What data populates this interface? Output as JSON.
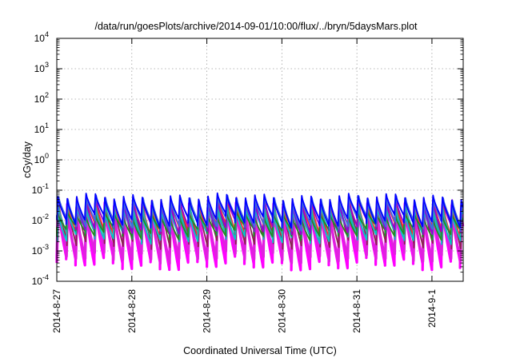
{
  "chart_data": {
    "type": "line",
    "title": "/data/run/goesPlots/archive/2014-09-01/10:00/flux/../bryn/5daysMars.plot",
    "xlabel": "Coordinated Universal Time (UTC)",
    "ylabel": "cGy/day",
    "yscale": "log",
    "ylim": [
      0.0001,
      10000
    ],
    "y_ticks": [
      {
        "value": 0.0001,
        "base": "10",
        "exp": "-4"
      },
      {
        "value": 0.001,
        "base": "10",
        "exp": "-3"
      },
      {
        "value": 0.01,
        "base": "10",
        "exp": "-2"
      },
      {
        "value": 0.1,
        "base": "10",
        "exp": "-1"
      },
      {
        "value": 1,
        "base": "10",
        "exp": "0"
      },
      {
        "value": 10,
        "base": "10",
        "exp": "1"
      },
      {
        "value": 100,
        "base": "10",
        "exp": "2"
      },
      {
        "value": 1000,
        "base": "10",
        "exp": "3"
      },
      {
        "value": 10000,
        "base": "10",
        "exp": "4"
      }
    ],
    "xlim": [
      "2014-08-27T00:00",
      "2014-09-01T10:00"
    ],
    "x_ticks": [
      "2014-8-27",
      "2014-8-28",
      "2014-8-29",
      "2014-8-30",
      "2014-8-31",
      "2014-9-1"
    ],
    "grid": true,
    "legend": "none",
    "sawtooth_period_hours": 3,
    "series": [
      {
        "color": "#ff00ff",
        "peak": 0.03,
        "trough": 0.0004
      },
      {
        "color": "#e020e0",
        "peak": 0.02,
        "trough": 0.0007
      },
      {
        "color": "#8b2252",
        "peak": 0.04,
        "trough": 0.002
      },
      {
        "color": "#ff3030",
        "peak": 0.05,
        "trough": 0.005
      },
      {
        "color": "#00c8c8",
        "peak": 0.02,
        "trough": 0.003
      },
      {
        "color": "#20b2aa",
        "peak": 0.03,
        "trough": 0.004
      },
      {
        "color": "#228b22",
        "peak": 0.015,
        "trough": 0.004
      },
      {
        "color": "#9400d3",
        "peak": 0.045,
        "trough": 0.006
      },
      {
        "color": "#4169e1",
        "peak": 0.05,
        "trough": 0.008
      },
      {
        "color": "#0000ff",
        "peak": 0.06,
        "trough": 0.01
      }
    ]
  }
}
